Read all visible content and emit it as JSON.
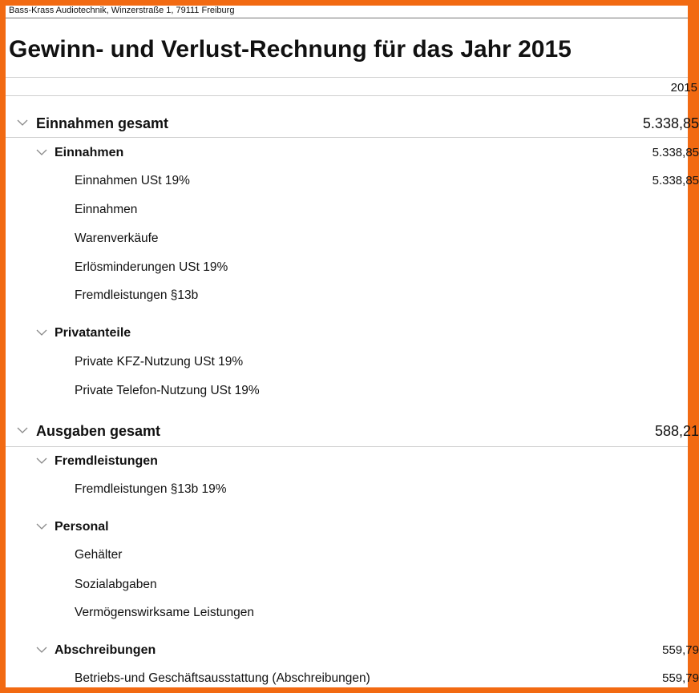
{
  "company_line": "Bass-Krass Audiotechnik, Winzerstraße 1, 79111 Freiburg",
  "title": "Gewinn- und Verlust-Rechnung für das Jahr 2015",
  "column_header": "2015",
  "rows": [
    {
      "level": 1,
      "label": "Einnahmen gesamt",
      "value": "5.338,85"
    },
    {
      "level": 2,
      "label": "Einnahmen",
      "value": "5.338,85"
    },
    {
      "level": 3,
      "label": "Einnahmen USt 19%",
      "value": "5.338,85"
    },
    {
      "level": 3,
      "label": "Einnahmen",
      "value": ""
    },
    {
      "level": 3,
      "label": "Warenverkäufe",
      "value": ""
    },
    {
      "level": 3,
      "label": "Erlösminderungen USt 19%",
      "value": ""
    },
    {
      "level": 3,
      "label": "Fremdleistungen §13b",
      "value": ""
    },
    {
      "level": 2,
      "label": "Privatanteile",
      "value": ""
    },
    {
      "level": 3,
      "label": "Private KFZ-Nutzung USt 19%",
      "value": ""
    },
    {
      "level": 3,
      "label": "Private Telefon-Nutzung USt 19%",
      "value": ""
    },
    {
      "level": 1,
      "label": "Ausgaben gesamt",
      "value": "588,21"
    },
    {
      "level": 2,
      "label": "Fremdleistungen",
      "value": ""
    },
    {
      "level": 3,
      "label": "Fremdleistungen §13b 19%",
      "value": ""
    },
    {
      "level": 2,
      "label": "Personal",
      "value": ""
    },
    {
      "level": 3,
      "label": "Gehälter",
      "value": ""
    },
    {
      "level": 3,
      "label": "Sozialabgaben",
      "value": ""
    },
    {
      "level": 3,
      "label": "Vermögenswirksame Leistungen",
      "value": ""
    },
    {
      "level": 2,
      "label": "Abschreibungen",
      "value": "559,79"
    },
    {
      "level": 3,
      "label": "Betriebs-und Geschäftsausstattung (Abschreibungen)",
      "value": "559,79"
    }
  ]
}
